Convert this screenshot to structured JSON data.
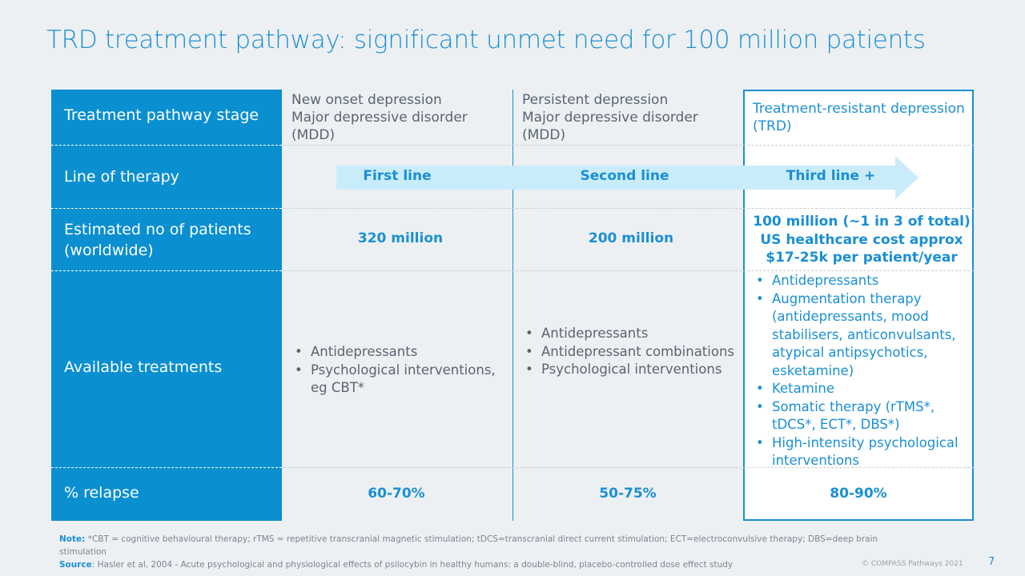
{
  "title": "TRD treatment pathway: significant unmet need for 100 million patients",
  "rows": {
    "stage": "Treatment pathway stage",
    "line": "Line of therapy",
    "patients": "Estimated no of patients (worldwide)",
    "treatments": "Available treatments",
    "relapse": "% relapse"
  },
  "columns": [
    {
      "stage": [
        "New onset depression",
        "Major depressive disorder",
        "(MDD)"
      ],
      "line": "First line",
      "patients": "320 million",
      "treatments": [
        "Antidepressants",
        "Psychological interventions, eg CBT*"
      ],
      "relapse": "60-70%"
    },
    {
      "stage": [
        "Persistent depression",
        "Major depressive disorder",
        "(MDD)"
      ],
      "line": "Second line",
      "patients": "200 million",
      "treatments": [
        "Antidepressants",
        "Antidepressant combinations",
        "Psychological interventions"
      ],
      "relapse": "50-75%"
    },
    {
      "stage": [
        "Treatment-resistant depression",
        "(TRD)"
      ],
      "line": "Third line +",
      "patients": [
        "100 million (~1 in 3 of total)",
        "US healthcare cost approx",
        "$17-25k per patient/year"
      ],
      "treatments": [
        "Antidepressants",
        "Augmentation therapy (antidepressants, mood stabilisers, anticonvulsants, atypical antipsychotics, esketamine)",
        "Ketamine",
        "Somatic therapy (rTMS*, tDCS*, ECT*, DBS*)",
        "High-intensity psychological interventions"
      ],
      "relapse": "80-90%"
    }
  ],
  "footer": {
    "note_label": "Note:",
    "note": " *CBT = cognitive behavioural therapy; rTMS = repetitive transcranial magnetic stimulation; tDCS=transcranial direct current stimulation; ECT=electroconvulsive therapy; DBS=deep brain stimulation",
    "source_label": "Source",
    "source": ": Hasler et al, 2004 - Acute psychological and physiological effects of psilocybin in healthy humans: a double-blind, placebo-controlled dose effect study",
    "copyright": "© COMPASS Pathways 2021",
    "page": "7"
  },
  "colors": {
    "brand": "#1a8fd4",
    "left_column": "#0a8fd1",
    "arrow": "#c9ecfa"
  }
}
